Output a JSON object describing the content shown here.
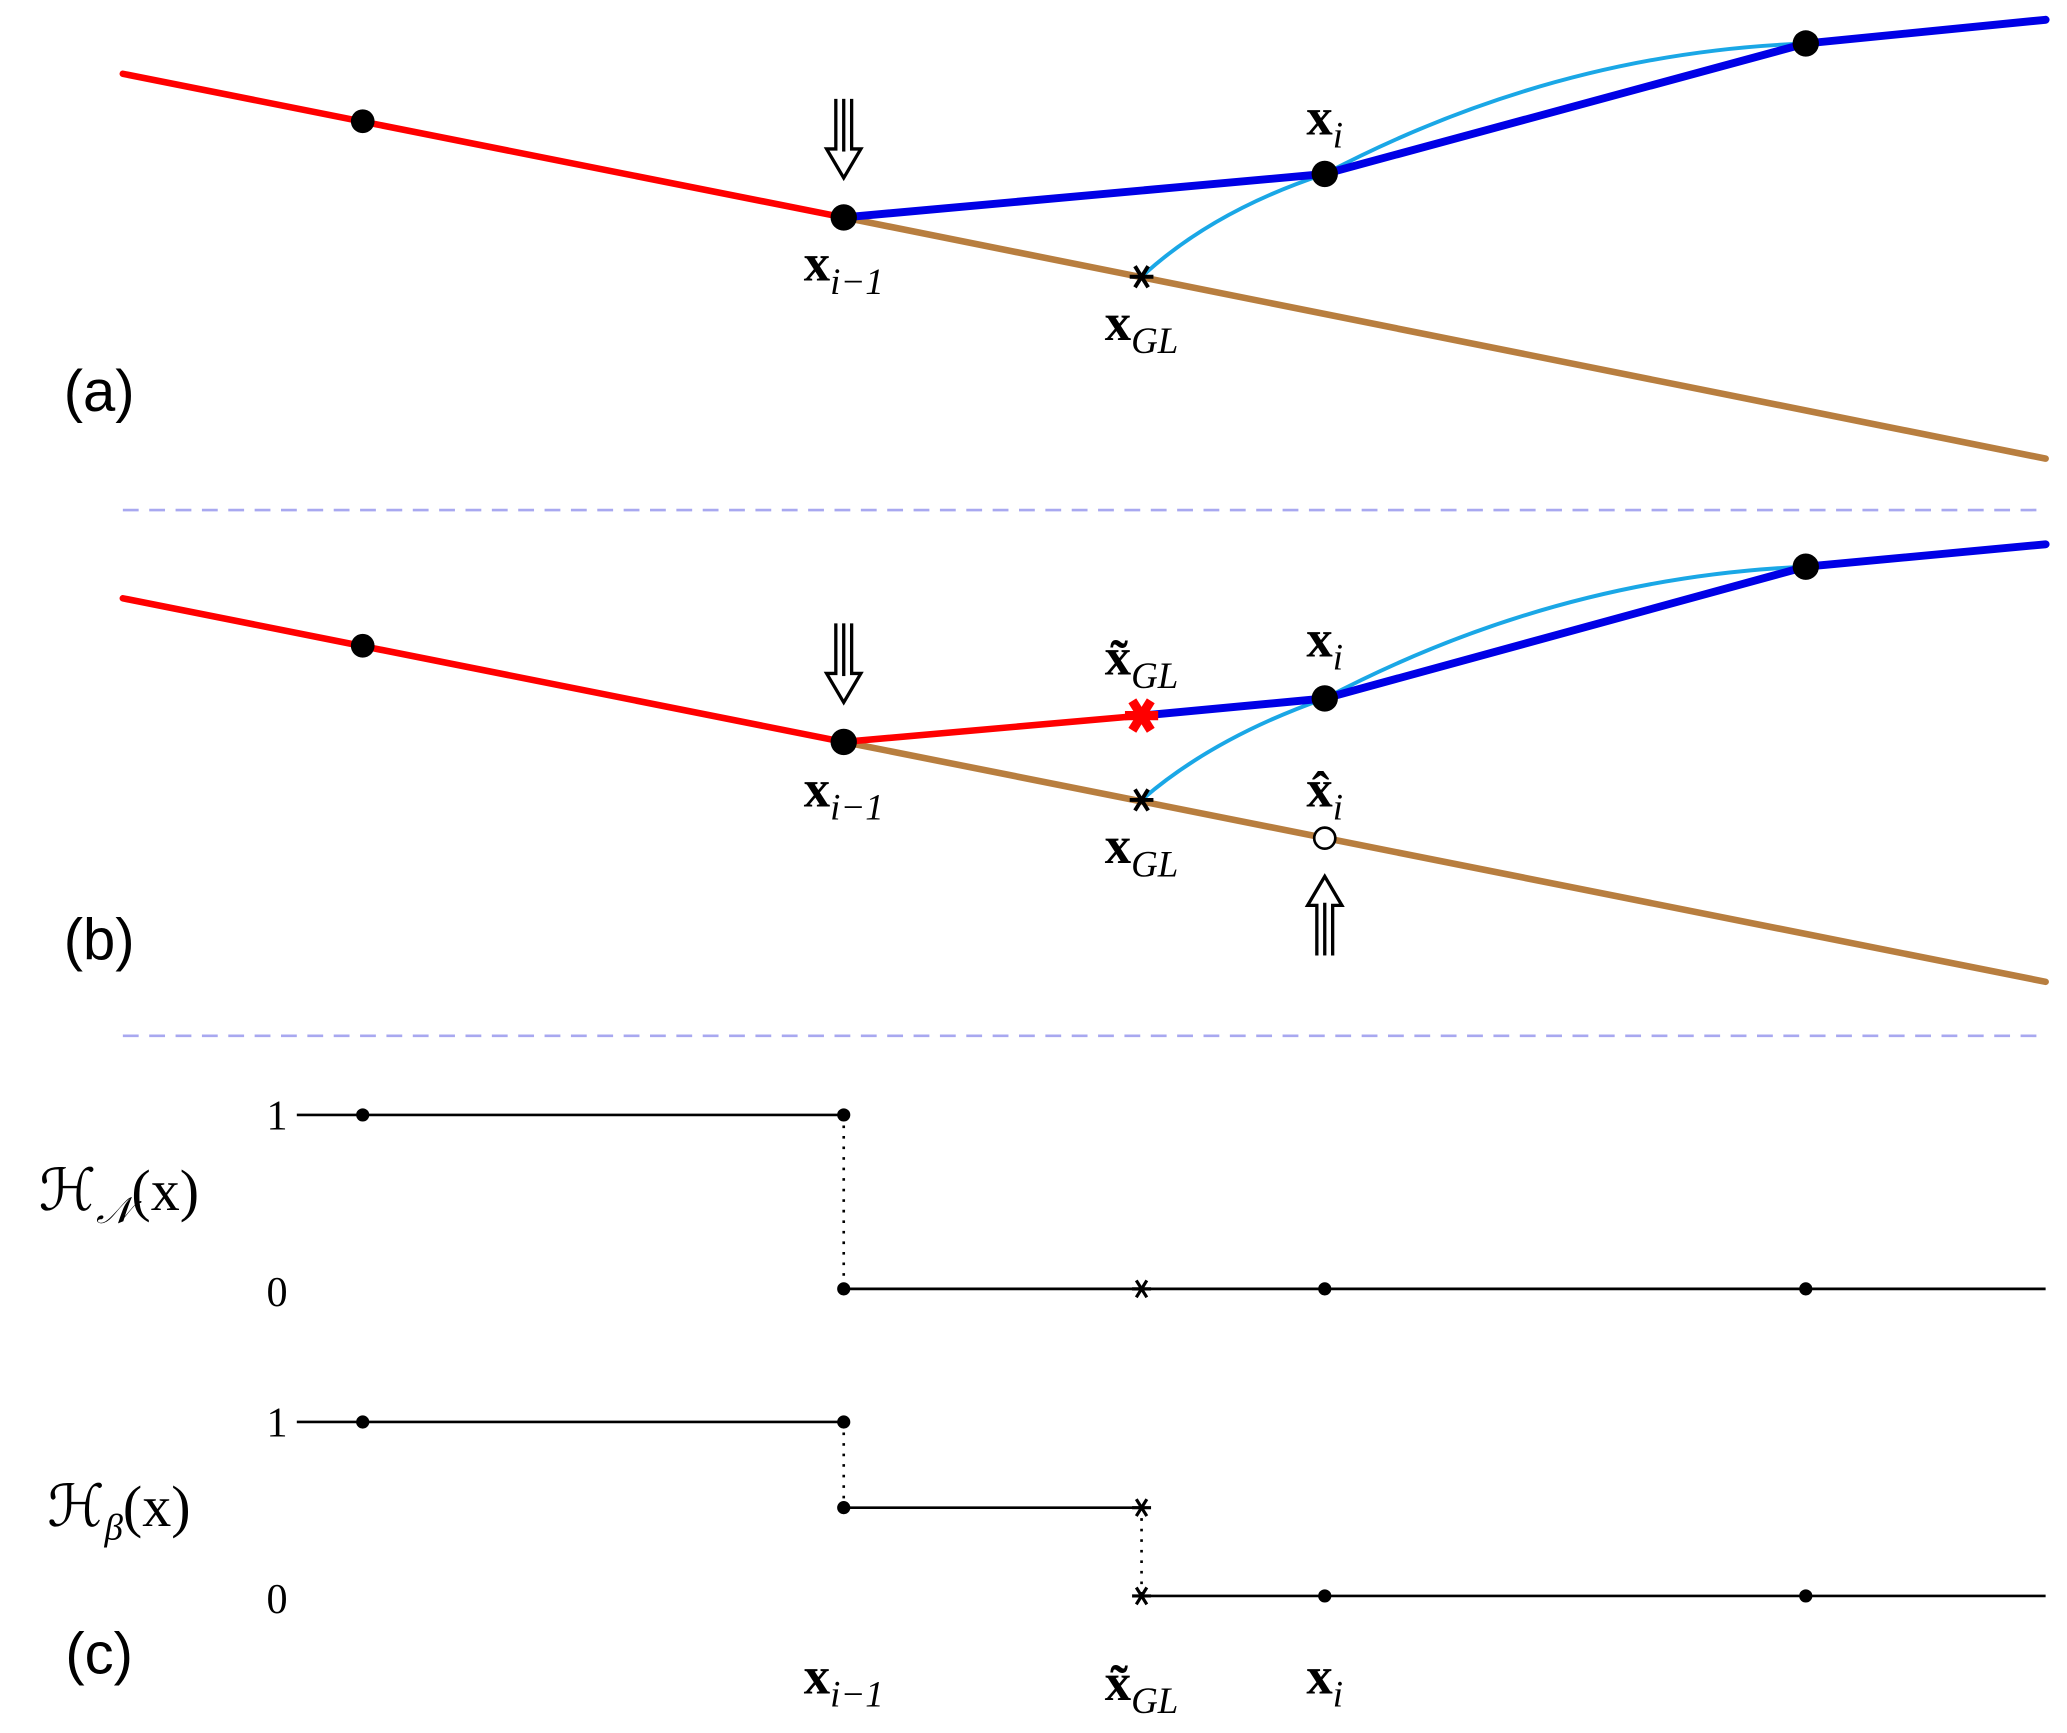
{
  "panel_a": {
    "label": "(a)",
    "x_prev": {
      "base": "x",
      "sub": "i−1"
    },
    "x_i": {
      "base": "x",
      "sub": "i"
    },
    "x_gl": {
      "base": "x",
      "sub": "GL"
    }
  },
  "panel_b": {
    "label": "(b)",
    "x_prev": {
      "base": "x",
      "sub": "i−1"
    },
    "x_gl_tilde": {
      "base": "x̃",
      "sub": "GL"
    },
    "x_i": {
      "base": "x",
      "sub": "i"
    },
    "x_gl": {
      "base": "x",
      "sub": "GL"
    },
    "x_hat_i": {
      "base": "x̂",
      "sub": "i"
    }
  },
  "panel_c": {
    "label": "(c)",
    "h_n": {
      "base": "ℋ",
      "sub": "𝒩",
      "arg": "(x)"
    },
    "h_n_ticks": [
      "1",
      "0"
    ],
    "h_beta": {
      "base": "ℋ",
      "sub": "β",
      "arg": "(x)"
    },
    "h_beta_ticks": [
      "1",
      "0"
    ],
    "x_prev": {
      "base": "x",
      "sub": "i−1"
    },
    "x_gl_tilde": {
      "base": "x̃",
      "sub": "GL"
    },
    "x_i": {
      "base": "x",
      "sub": "i"
    }
  }
}
